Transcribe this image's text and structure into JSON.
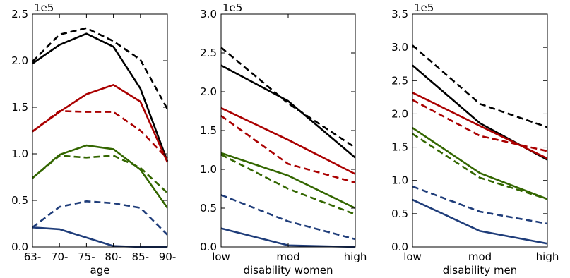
{
  "colors": {
    "black": "#000000",
    "red": "#aa0000",
    "green": "#336600",
    "blue": "#1f3d7a"
  },
  "chart_data": [
    {
      "type": "line",
      "xlabel": "age",
      "ylabel": "",
      "offset_text": "1e5",
      "ylim": [
        0,
        2.5
      ],
      "yticks": [
        "0.0",
        "0.5",
        "1.0",
        "1.5",
        "2.0",
        "2.5"
      ],
      "categories": [
        "63-",
        "70-",
        "75-",
        "80-",
        "85-",
        "90-"
      ],
      "series": [
        {
          "color": "black",
          "dash": false,
          "values": [
            1.97,
            2.17,
            2.29,
            2.15,
            1.7,
            0.92
          ]
        },
        {
          "color": "black",
          "dash": true,
          "values": [
            1.99,
            2.28,
            2.35,
            2.21,
            2.01,
            1.48
          ]
        },
        {
          "color": "red",
          "dash": false,
          "values": [
            1.24,
            1.45,
            1.64,
            1.74,
            1.56,
            0.91
          ]
        },
        {
          "color": "red",
          "dash": true,
          "values": [
            1.24,
            1.46,
            1.45,
            1.45,
            1.25,
            0.95
          ]
        },
        {
          "color": "green",
          "dash": false,
          "values": [
            0.74,
            0.99,
            1.09,
            1.05,
            0.83,
            0.42
          ]
        },
        {
          "color": "green",
          "dash": true,
          "values": [
            0.74,
            0.98,
            0.96,
            0.98,
            0.85,
            0.58
          ]
        },
        {
          "color": "blue",
          "dash": false,
          "values": [
            0.21,
            0.19,
            0.1,
            0.01,
            0.0,
            0.0
          ]
        },
        {
          "color": "blue",
          "dash": true,
          "values": [
            0.21,
            0.43,
            0.49,
            0.47,
            0.42,
            0.13
          ]
        }
      ]
    },
    {
      "type": "line",
      "xlabel": "disability women",
      "ylabel": "",
      "offset_text": "1e5",
      "ylim": [
        0,
        3.0
      ],
      "yticks": [
        "0.0",
        "0.5",
        "1.0",
        "1.5",
        "2.0",
        "2.5",
        "3.0"
      ],
      "categories": [
        "low",
        "mod",
        "high"
      ],
      "series": [
        {
          "color": "black",
          "dash": false,
          "values": [
            2.34,
            1.88,
            1.15
          ]
        },
        {
          "color": "black",
          "dash": true,
          "values": [
            2.57,
            1.85,
            1.28
          ]
        },
        {
          "color": "red",
          "dash": false,
          "values": [
            1.79,
            1.38,
            0.94
          ]
        },
        {
          "color": "red",
          "dash": true,
          "values": [
            1.69,
            1.07,
            0.83
          ]
        },
        {
          "color": "green",
          "dash": false,
          "values": [
            1.21,
            0.92,
            0.5
          ]
        },
        {
          "color": "green",
          "dash": true,
          "values": [
            1.19,
            0.75,
            0.42
          ]
        },
        {
          "color": "blue",
          "dash": false,
          "values": [
            0.24,
            0.02,
            0.0
          ]
        },
        {
          "color": "blue",
          "dash": true,
          "values": [
            0.67,
            0.33,
            0.1
          ]
        }
      ]
    },
    {
      "type": "line",
      "xlabel": "disability men",
      "ylabel": "",
      "offset_text": "1e5",
      "ylim": [
        0,
        3.5
      ],
      "yticks": [
        "0.0",
        "0.5",
        "1.0",
        "1.5",
        "2.0",
        "2.5",
        "3.0",
        "3.5"
      ],
      "categories": [
        "low",
        "mod",
        "high"
      ],
      "series": [
        {
          "color": "black",
          "dash": false,
          "values": [
            2.73,
            1.86,
            1.31
          ]
        },
        {
          "color": "black",
          "dash": true,
          "values": [
            3.03,
            2.15,
            1.8
          ]
        },
        {
          "color": "red",
          "dash": false,
          "values": [
            2.32,
            1.82,
            1.33
          ]
        },
        {
          "color": "red",
          "dash": true,
          "values": [
            2.21,
            1.67,
            1.44
          ]
        },
        {
          "color": "green",
          "dash": false,
          "values": [
            1.79,
            1.11,
            0.72
          ]
        },
        {
          "color": "green",
          "dash": true,
          "values": [
            1.7,
            1.04,
            0.72
          ]
        },
        {
          "color": "blue",
          "dash": false,
          "values": [
            0.71,
            0.24,
            0.05
          ]
        },
        {
          "color": "blue",
          "dash": true,
          "values": [
            0.91,
            0.53,
            0.35
          ]
        }
      ]
    }
  ]
}
